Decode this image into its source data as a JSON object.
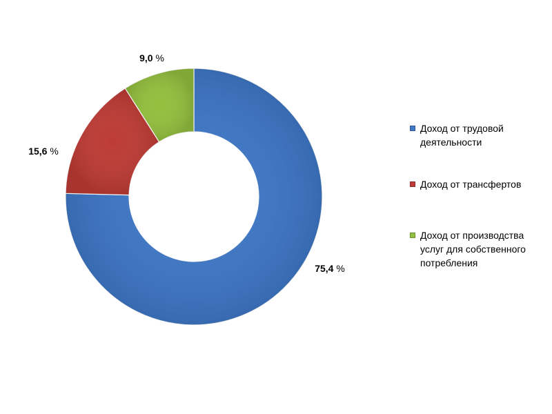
{
  "chart_data": {
    "type": "pie",
    "donut": true,
    "categories": [
      "Доход от трудовой деятельности",
      "Доход от трансфертов",
      "Доход от производства услуг для собственного потребления"
    ],
    "values": [
      75.4,
      15.6,
      9.0
    ],
    "value_labels": [
      "75,4",
      "15,6",
      "9,0"
    ],
    "unit": "%",
    "colors": [
      "#3f78c8",
      "#be3b35",
      "#93bf3e"
    ],
    "legend_position": "right",
    "legend": [
      {
        "lines": [
          "Доход от трудовой",
          "деятельности"
        ],
        "color": "#3f78c8"
      },
      {
        "lines": [
          "Доход от трансфертов"
        ],
        "color": "#be3b35"
      },
      {
        "lines": [
          "Доход от производства",
          "услуг для собственного",
          "потребления"
        ],
        "color": "#93bf3e"
      }
    ]
  }
}
